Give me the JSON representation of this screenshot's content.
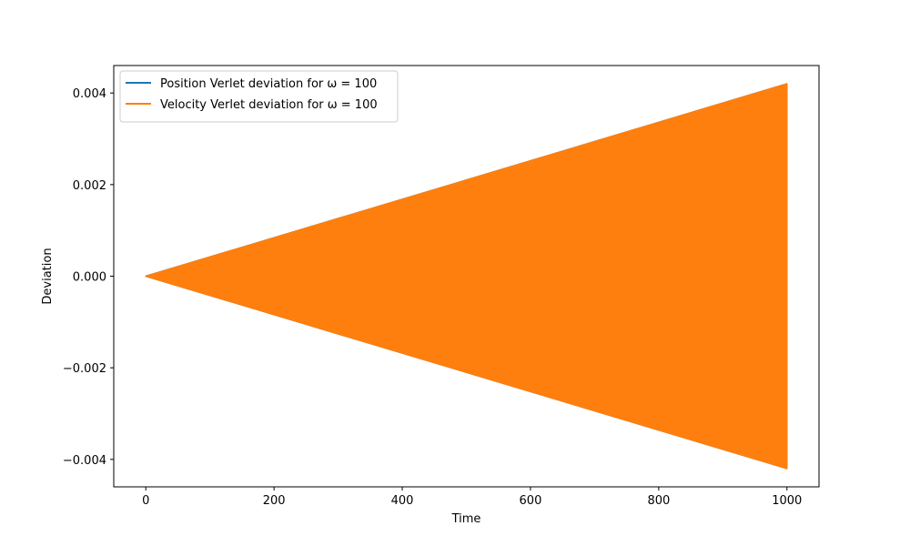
{
  "chart_data": {
    "type": "line",
    "xlabel": "Time",
    "ylabel": "Deviation",
    "xlim": [
      -50,
      1050
    ],
    "ylim": [
      -0.0046,
      0.0046
    ],
    "xticks": [
      0,
      200,
      400,
      600,
      800,
      1000
    ],
    "xtick_labels": [
      "0",
      "200",
      "400",
      "600",
      "800",
      "1000"
    ],
    "yticks": [
      -0.004,
      -0.002,
      0.0,
      0.002,
      0.004
    ],
    "ytick_labels": [
      "−0.004",
      "−0.002",
      "0.000",
      "0.002",
      "0.004"
    ],
    "grid": false,
    "legend_position": "upper-left",
    "series": [
      {
        "name": "Position Verlet deviation for ω = 100",
        "color": "#1f77b4",
        "style": "rapid oscillation within a linearly growing envelope",
        "x": [
          0,
          1000
        ],
        "envelope_upper": [
          0.0,
          0.0042
        ],
        "envelope_lower": [
          0.0,
          -0.0042
        ]
      },
      {
        "name": "Velocity Verlet deviation for ω = 100",
        "color": "#ff7f0e",
        "style": "rapid oscillation within a linearly growing envelope",
        "x": [
          0,
          1000
        ],
        "envelope_upper": [
          0.0,
          0.0042
        ],
        "envelope_lower": [
          0.0,
          -0.0042
        ]
      }
    ]
  }
}
